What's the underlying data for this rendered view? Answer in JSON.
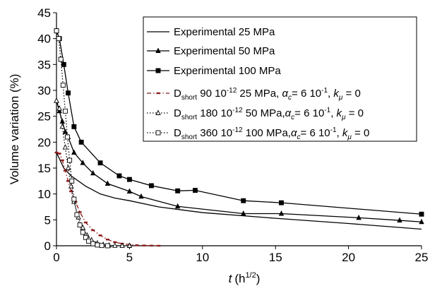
{
  "chart_data": {
    "type": "line",
    "title": "",
    "xlabel": "t",
    "xlabel_unit": "(h",
    "xlabel_exp": "1/2",
    "xlabel_close": ")",
    "ylabel": "Volume variation (%)",
    "xlim": [
      0,
      25
    ],
    "ylim": [
      0,
      45
    ],
    "xticks": [
      "0",
      "5",
      "10",
      "15",
      "20",
      "25"
    ],
    "yticks": [
      "0",
      "5",
      "10",
      "15",
      "20",
      "25",
      "30",
      "35",
      "40",
      "45"
    ],
    "grid": false,
    "legend_position": "top-right",
    "series": [
      {
        "style": "solid",
        "marker": "none",
        "label": {
          "text": "Experimental 25 MPa"
        },
        "x": [
          0,
          0.5,
          1,
          2,
          3,
          4,
          5,
          7,
          10,
          15,
          20,
          25
        ],
        "y": [
          18,
          15,
          13.5,
          11.5,
          10,
          9.2,
          8.7,
          7.5,
          6.4,
          5.3,
          4.3,
          3.2
        ]
      },
      {
        "style": "solid",
        "marker": "triangle",
        "label": {
          "text": "Experimental 50 MPa"
        },
        "x": [
          0,
          0.2,
          0.4,
          0.6,
          0.8,
          1.2,
          1.8,
          2.5,
          3.5,
          5,
          5.8,
          8.3,
          12.8,
          15.4,
          20.7,
          23.5,
          25
        ],
        "y": [
          28,
          26,
          24,
          22,
          21,
          18,
          16,
          14,
          12,
          10.5,
          9.5,
          7.6,
          6.2,
          6.2,
          5.4,
          4.9,
          4.6
        ]
      },
      {
        "style": "solid",
        "marker": "square",
        "label": {
          "text": "Experimental 100 MPa"
        },
        "x": [
          0,
          0.2,
          0.5,
          0.8,
          1.2,
          1.7,
          3,
          4.3,
          5,
          6.5,
          8.3,
          9.5,
          12.8,
          15.4,
          25
        ],
        "y": [
          41.5,
          40,
          35,
          29.5,
          23,
          20,
          16,
          13.5,
          12.8,
          11.6,
          10.6,
          10.7,
          8.7,
          8.3,
          6.1
        ]
      },
      {
        "style": "dash-dot",
        "marker": "dash",
        "color": "#8b1a1a",
        "label": {
          "pre": "D",
          "sub": "short",
          "mid": " 90 10",
          "sup1": "-12",
          "tail1": "  25 MPa, ",
          "alpha": "α",
          "alpha_sub": "c",
          "tail2": "= 6 10",
          "sup2": "-1",
          "tail3": ", ",
          "k": "k",
          "k_sub": "μ",
          "tail4": " = 0"
        },
        "x": [
          0,
          0.2,
          0.4,
          0.6,
          0.8,
          1,
          1.3,
          1.6,
          2,
          2.5,
          3,
          3.5,
          4,
          4.5,
          5,
          5.5,
          6,
          6.5,
          7
        ],
        "y": [
          18,
          17.8,
          16.5,
          14.5,
          12.5,
          10.5,
          8.5,
          6.5,
          4.5,
          3,
          2,
          1.2,
          0.7,
          0.4,
          0.2,
          0.1,
          0.05,
          0.02,
          0
        ]
      },
      {
        "style": "dotted",
        "marker": "triangle-open",
        "label": {
          "pre": "D",
          "sub": "short",
          "mid": " 180 10",
          "sup1": "-12",
          "tail1": "  50 MPa,",
          "alpha": "α",
          "alpha_sub": "c",
          "tail2": "= 6 10",
          "sup2": "-1",
          "tail3": ", ",
          "k": "k",
          "k_sub": "μ",
          "tail4": " = 0"
        },
        "x": [
          0,
          0.2,
          0.4,
          0.6,
          0.8,
          1,
          1.2,
          1.5,
          1.8,
          2.1,
          2.4,
          2.8,
          3.2,
          3.6,
          4,
          4.5,
          5
        ],
        "y": [
          28,
          26.5,
          23,
          19,
          15,
          11.5,
          8.5,
          5.5,
          3.5,
          2,
          1.1,
          0.5,
          0.2,
          0.08,
          0.03,
          0.01,
          0
        ]
      },
      {
        "style": "dotted",
        "marker": "square-open",
        "label": {
          "pre": "D",
          "sub": "short",
          "mid": " 360 10",
          "sup1": "-12",
          "tail1": "  100 MPa,",
          "alpha": "α",
          "alpha_sub": "c",
          "tail2": "= 6 10",
          "sup2": "-1",
          "tail3": ", ",
          "k": "k",
          "k_sub": "μ",
          "tail4": " = 0"
        },
        "x": [
          0,
          0.15,
          0.3,
          0.45,
          0.6,
          0.75,
          0.9,
          1.05,
          1.2,
          1.4,
          1.6,
          1.8,
          2,
          2.2,
          2.5,
          2.8,
          3.1,
          3.5
        ],
        "y": [
          41.5,
          40,
          36,
          31,
          26,
          21,
          16.5,
          12.5,
          9,
          6,
          4,
          2.6,
          1.6,
          0.9,
          0.4,
          0.15,
          0.05,
          0
        ]
      }
    ]
  }
}
